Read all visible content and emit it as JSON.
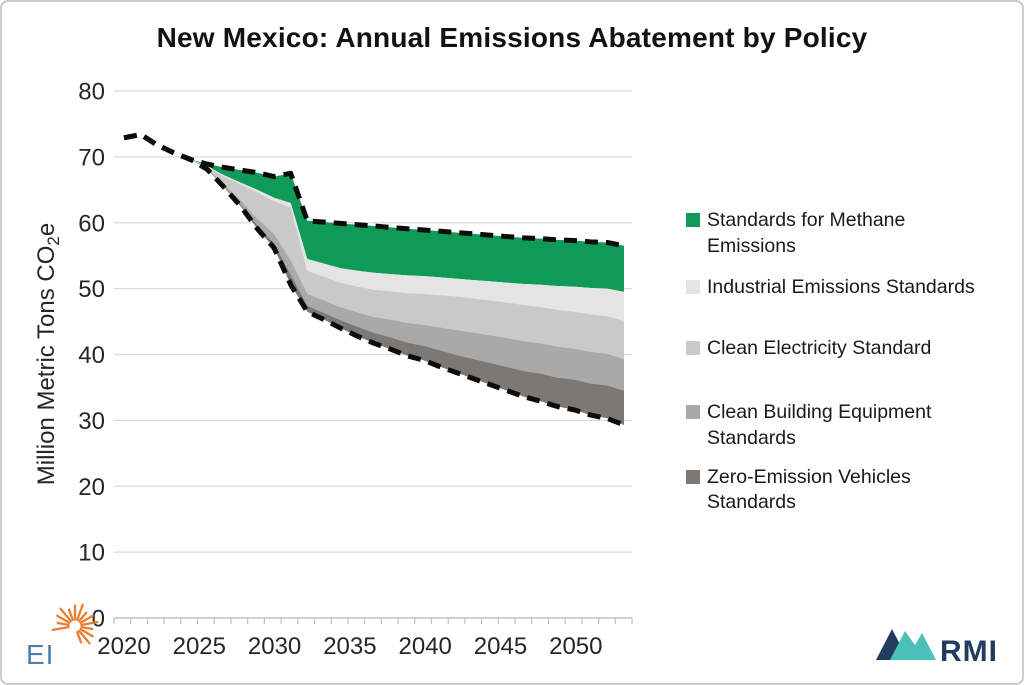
{
  "title": "New Mexico: Annual Emissions Abatement by Policy",
  "chart_data": {
    "type": "area",
    "title": "New Mexico: Annual Emissions Abatement by Policy",
    "xlabel": "",
    "ylabel": "Million Metric Tons CO2e",
    "ylabel_parts": {
      "pre": "Million Metric Tons CO",
      "sub": "2",
      "post": "e"
    },
    "ylim": [
      0,
      80
    ],
    "ytick_step": 10,
    "xticks": [
      2020,
      2025,
      2030,
      2035,
      2040,
      2045,
      2050
    ],
    "grid": "horizontal",
    "legend_position": "right",
    "x": [
      2020,
      2021,
      2022,
      2023,
      2024,
      2025,
      2026,
      2027,
      2028,
      2029,
      2030,
      2031,
      2032,
      2033,
      2034,
      2035,
      2036,
      2037,
      2038,
      2039,
      2040,
      2041,
      2042,
      2043,
      2044,
      2045,
      2046,
      2047,
      2048,
      2049,
      2050
    ],
    "baseline_dashed": {
      "style": "dashed-black-top",
      "values": [
        72.9,
        73.4,
        71.8,
        70.6,
        69.6,
        68.9,
        68.4,
        68.0,
        67.6,
        67.0,
        67.5,
        60.3,
        60.1,
        59.9,
        59.7,
        59.5,
        59.3,
        59.1,
        58.9,
        58.7,
        58.5,
        58.3,
        58.1,
        57.9,
        57.7,
        57.6,
        57.4,
        57.3,
        57.1,
        57.0,
        56.5
      ]
    },
    "series": [
      {
        "name": "Standards for Methane Emissions",
        "color": "#0f9b57",
        "values": [
          0,
          0,
          0,
          0,
          0,
          0.3,
          1.2,
          1.9,
          2.6,
          3.2,
          4.5,
          5.8,
          6.3,
          6.8,
          7.0,
          7.1,
          7.1,
          7.1,
          7.0,
          7.0,
          7.0,
          7.0,
          7.0,
          7.0,
          7.0,
          7.0,
          7.0,
          7.0,
          7.0,
          7.0,
          7.0
        ]
      },
      {
        "name": "Industrial Emissions Standards",
        "color": "#e4e4e4",
        "values": [
          0,
          0,
          0,
          0,
          0,
          0.1,
          0.2,
          0.3,
          0.4,
          0.5,
          0.7,
          1.8,
          2.0,
          2.2,
          2.4,
          2.6,
          2.6,
          2.7,
          2.7,
          2.7,
          2.7,
          2.8,
          2.9,
          3.0,
          3.2,
          3.4,
          3.6,
          3.8,
          4.0,
          4.2,
          4.4
        ]
      },
      {
        "name": "Clean Electricity Standard",
        "color": "#c9c9c9",
        "values": [
          0,
          0,
          0,
          0,
          0,
          0.2,
          1.2,
          2.4,
          4.0,
          5.0,
          8.0,
          3.5,
          3.6,
          3.7,
          3.9,
          4.1,
          4.3,
          4.5,
          4.7,
          4.9,
          5.1,
          5.2,
          5.3,
          5.4,
          5.5,
          5.5,
          5.6,
          5.6,
          5.7,
          5.7,
          5.8
        ]
      },
      {
        "name": "Clean Building Equipment Standards",
        "color": "#a9a9a9",
        "values": [
          0,
          0,
          0,
          0,
          0,
          0.1,
          0.3,
          0.6,
          1.0,
          1.4,
          2.2,
          1.8,
          1.9,
          2.0,
          2.2,
          2.4,
          2.7,
          3.0,
          3.2,
          3.5,
          3.8,
          4.0,
          4.2,
          4.4,
          4.5,
          4.6,
          4.7,
          4.7,
          4.8,
          4.8,
          4.8
        ]
      },
      {
        "name": "Zero-Emission Vehicles Standards",
        "color": "#7d7874",
        "values": [
          0,
          0,
          0,
          0,
          0,
          0.1,
          0.1,
          0.3,
          0.5,
          0.7,
          1.5,
          0.9,
          1.0,
          1.2,
          1.4,
          1.6,
          1.8,
          2.0,
          2.2,
          2.5,
          2.7,
          3.0,
          3.3,
          3.6,
          3.9,
          4.2,
          4.4,
          4.6,
          4.8,
          5.0,
          5.2
        ]
      }
    ],
    "net_dashed": {
      "style": "dashed-black-bottom",
      "values": [
        72.9,
        73.4,
        71.8,
        70.6,
        69.6,
        68.1,
        65.4,
        62.5,
        59.1,
        56.2,
        50.6,
        46.5,
        45.3,
        44.0,
        42.8,
        41.7,
        40.8,
        39.8,
        39.1,
        38.1,
        37.2,
        36.3,
        35.4,
        34.5,
        33.6,
        32.9,
        32.1,
        31.6,
        30.8,
        30.3,
        29.3
      ]
    }
  },
  "legend": {
    "items": [
      {
        "lines": [
          "Standards for Methane",
          "Emissions"
        ],
        "color": "#0f9b57"
      },
      {
        "lines": [
          "Industrial Emissions Standards"
        ],
        "color": "#e4e4e4"
      },
      {
        "lines": [
          "Clean Electricity Standard"
        ],
        "color": "#c9c9c9"
      },
      {
        "lines": [
          "Clean Building Equipment",
          "Standards"
        ],
        "color": "#a9a9a9"
      },
      {
        "lines": [
          "Zero-Emission Vehicles",
          "Standards"
        ],
        "color": "#7d7874"
      }
    ]
  },
  "colors": {
    "dashed_line": "#0c0c0c",
    "gridline": "#d9d9d9",
    "axis_line": "#bfbfbf",
    "title_text": "#121212",
    "tick_text": "#262626",
    "ei_blue": "#4e81aa",
    "ei_orange": "#ed7d31",
    "rmi_navy": "#203d5f",
    "rmi_teal": "#49c0b8"
  },
  "logos": {
    "ei_text": "EI",
    "rmi_text": "RMI"
  }
}
